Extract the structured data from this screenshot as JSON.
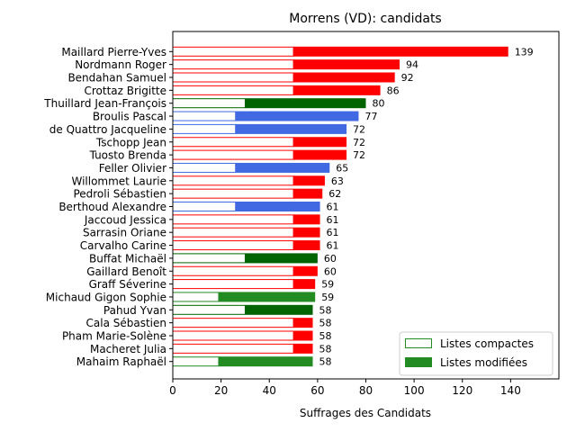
{
  "chart_data": {
    "type": "bar",
    "orientation": "horizontal",
    "title": "Morrens (VD): candidats",
    "xlabel": "Suffrages des Candidats",
    "ylabel": "",
    "xlim": [
      0,
      160
    ],
    "xticks": [
      0,
      20,
      40,
      60,
      80,
      100,
      120,
      140
    ],
    "grid": false,
    "legend_position": "lower right",
    "legend": [
      {
        "label": "Listes compactes",
        "style": "outline",
        "color": "#228b22"
      },
      {
        "label": "Listes modifiées",
        "style": "filled",
        "color": "#228b22"
      }
    ],
    "candidates": [
      {
        "name": "Maillard Pierre-Yves",
        "total": 139,
        "compact": 50,
        "color": "#ff0000"
      },
      {
        "name": "Nordmann Roger",
        "total": 94,
        "compact": 50,
        "color": "#ff0000"
      },
      {
        "name": "Bendahan Samuel",
        "total": 92,
        "compact": 50,
        "color": "#ff0000"
      },
      {
        "name": "Crottaz Brigitte",
        "total": 86,
        "compact": 50,
        "color": "#ff0000"
      },
      {
        "name": "Thuillard Jean-François",
        "total": 80,
        "compact": 30,
        "color": "#006400"
      },
      {
        "name": "Broulis Pascal",
        "total": 77,
        "compact": 26,
        "color": "#4169e1"
      },
      {
        "name": "de Quattro Jacqueline",
        "total": 72,
        "compact": 26,
        "color": "#4169e1"
      },
      {
        "name": "Tschopp Jean",
        "total": 72,
        "compact": 50,
        "color": "#ff0000"
      },
      {
        "name": "Tuosto Brenda",
        "total": 72,
        "compact": 50,
        "color": "#ff0000"
      },
      {
        "name": "Feller Olivier",
        "total": 65,
        "compact": 26,
        "color": "#4169e1"
      },
      {
        "name": "Willommet Laurie",
        "total": 63,
        "compact": 50,
        "color": "#ff0000"
      },
      {
        "name": "Pedroli Sébastien",
        "total": 62,
        "compact": 50,
        "color": "#ff0000"
      },
      {
        "name": "Berthoud Alexandre",
        "total": 61,
        "compact": 26,
        "color": "#4169e1"
      },
      {
        "name": "Jaccoud Jessica",
        "total": 61,
        "compact": 50,
        "color": "#ff0000"
      },
      {
        "name": "Sarrasin Oriane",
        "total": 61,
        "compact": 50,
        "color": "#ff0000"
      },
      {
        "name": "Carvalho Carine",
        "total": 61,
        "compact": 50,
        "color": "#ff0000"
      },
      {
        "name": "Buffat Michaël",
        "total": 60,
        "compact": 30,
        "color": "#006400"
      },
      {
        "name": "Gaillard Benoît",
        "total": 60,
        "compact": 50,
        "color": "#ff0000"
      },
      {
        "name": "Graff Séverine",
        "total": 59,
        "compact": 50,
        "color": "#ff0000"
      },
      {
        "name": "Michaud Gigon Sophie",
        "total": 59,
        "compact": 19,
        "color": "#228b22"
      },
      {
        "name": "Pahud Yvan",
        "total": 58,
        "compact": 30,
        "color": "#006400"
      },
      {
        "name": "Cala Sébastien",
        "total": 58,
        "compact": 50,
        "color": "#ff0000"
      },
      {
        "name": "Pham Marie-Solène",
        "total": 58,
        "compact": 50,
        "color": "#ff0000"
      },
      {
        "name": "Macheret Julia",
        "total": 58,
        "compact": 50,
        "color": "#ff0000"
      },
      {
        "name": "Mahaim Raphaël",
        "total": 58,
        "compact": 19,
        "color": "#228b22"
      }
    ]
  }
}
